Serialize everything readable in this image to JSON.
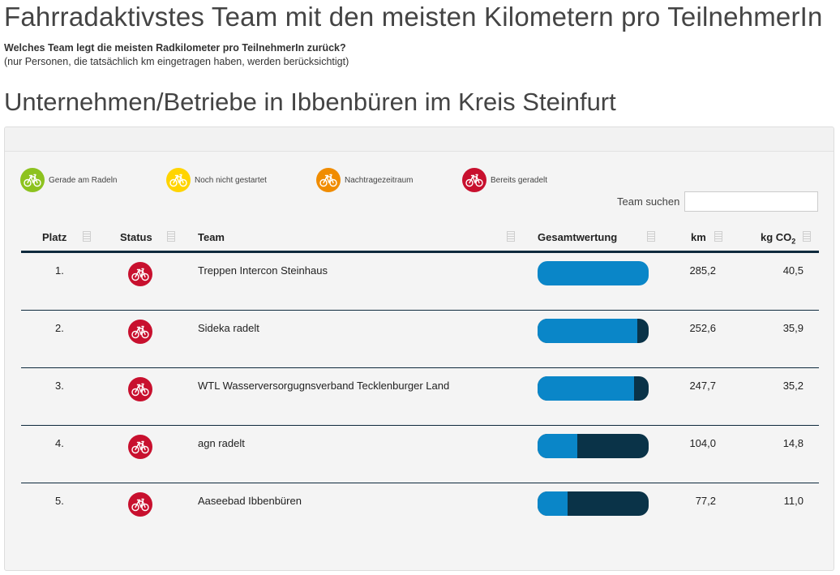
{
  "header": {
    "title": "Fahrradaktivstes Team mit den meisten Kilometern pro TeilnehmerIn",
    "question": "Welches Team legt die meisten Radkilometer pro TeilnehmerIn zurück?",
    "note": "(nur Personen, die tatsächlich km eingetragen haben, werden berücksichtigt)",
    "section_title": "Unternehmen/Betriebe in Ibbenbüren im Kreis Steinfurt"
  },
  "legend": [
    {
      "label": "Gerade am Radeln",
      "color": "#8dc21f",
      "icon": "bicycle-icon"
    },
    {
      "label": "Noch nicht gestartet",
      "color": "#ffd400",
      "icon": "bicycle-icon"
    },
    {
      "label": "Nachtragezeitraum",
      "color": "#f08c00",
      "icon": "bicycle-icon"
    },
    {
      "label": "Bereits geradelt",
      "color": "#c8102e",
      "icon": "bicycle-icon"
    }
  ],
  "search": {
    "label": "Team suchen",
    "value": ""
  },
  "table": {
    "columns": {
      "rank": "Platz",
      "status": "Status",
      "team": "Team",
      "score": "Gesamtwertung",
      "km": "km",
      "co2": "kg CO",
      "co2_sub": "2"
    },
    "rows": [
      {
        "rank": "1.",
        "team": "Treppen Intercon Steinhaus",
        "score": 1.0,
        "km": "285,2",
        "co2": "40,5",
        "status_color": "#c8102e"
      },
      {
        "rank": "2.",
        "team": "Sideka radelt",
        "score": 0.9,
        "km": "252,6",
        "co2": "35,9",
        "status_color": "#c8102e"
      },
      {
        "rank": "3.",
        "team": "WTL Wasserversorgugnsverband Tecklenburger Land",
        "score": 0.87,
        "km": "247,7",
        "co2": "35,2",
        "status_color": "#c8102e"
      },
      {
        "rank": "4.",
        "team": "agn radelt",
        "score": 0.36,
        "km": "104,0",
        "co2": "14,8",
        "status_color": "#c8102e"
      },
      {
        "rank": "5.",
        "team": "Aaseebad Ibbenbüren",
        "score": 0.27,
        "km": "77,2",
        "co2": "11,0",
        "status_color": "#c8102e"
      }
    ]
  }
}
